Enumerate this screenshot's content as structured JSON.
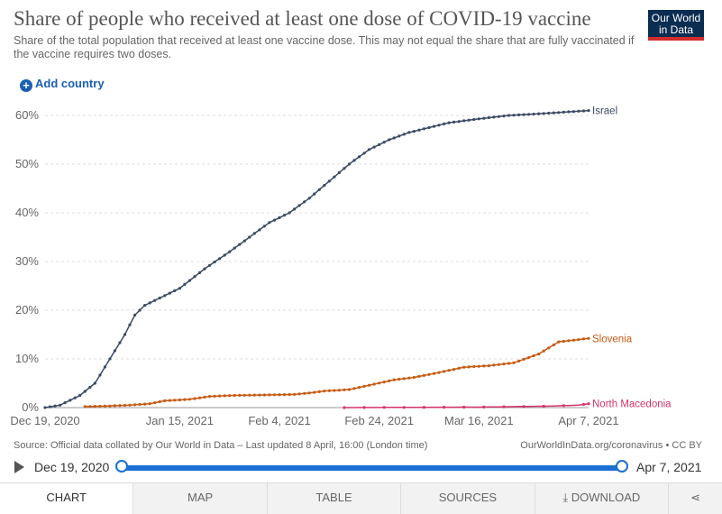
{
  "header": {
    "title": "Share of people who received at least one dose of COVID-19 vaccine",
    "subtitle": "Share of the total population that received at least one vaccine dose. This may not equal the share that are fully vaccinated if the vaccine requires two doses.",
    "logo_line1": "Our World",
    "logo_line2": "in Data"
  },
  "controls": {
    "add_country_label": "Add country"
  },
  "footer": {
    "source": "Source: Official data collated by Our World in Data – Last updated 8 April, 16:00 (London time)",
    "credit": "OurWorldInData.org/coronavirus • CC BY"
  },
  "timeline": {
    "start": "Dec 19, 2020",
    "end": "Apr 7, 2021"
  },
  "tabs": [
    "CHART",
    "MAP",
    "TABLE",
    "SOURCES",
    "DOWNLOAD",
    ""
  ],
  "colors": {
    "israel": "#3b4a63",
    "slovenia": "#c85a12",
    "north_macedonia": "#d6336c",
    "accent": "#1a6fd4"
  },
  "chart_data": {
    "type": "line",
    "x_start": "2020-12-19",
    "x_end": "2021-04-07",
    "x_tick_labels": [
      "Dec 19, 2020",
      "Jan 15, 2021",
      "Feb 4, 2021",
      "Feb 24, 2021",
      "Mar 16, 2021",
      "Apr 7, 2021"
    ],
    "x_tick_dates": [
      "2020-12-19",
      "2021-01-15",
      "2021-02-04",
      "2021-02-24",
      "2021-03-16",
      "2021-04-07"
    ],
    "y_ticks": [
      "0%",
      "10%",
      "20%",
      "30%",
      "40%",
      "50%",
      "60%"
    ],
    "ylim": [
      0,
      60
    ],
    "grid": true,
    "series": [
      {
        "name": "Israel",
        "color": "#3b4a63",
        "points": [
          [
            "2020-12-19",
            0
          ],
          [
            "2020-12-22",
            0.5
          ],
          [
            "2020-12-26",
            2.5
          ],
          [
            "2020-12-29",
            5
          ],
          [
            "2021-01-01",
            10
          ],
          [
            "2021-01-04",
            15
          ],
          [
            "2021-01-06",
            19
          ],
          [
            "2021-01-08",
            21
          ],
          [
            "2021-01-11",
            22.5
          ],
          [
            "2021-01-15",
            24.5
          ],
          [
            "2021-01-20",
            28.5
          ],
          [
            "2021-01-25",
            32
          ],
          [
            "2021-01-29",
            35
          ],
          [
            "2021-02-02",
            38
          ],
          [
            "2021-02-06",
            40
          ],
          [
            "2021-02-10",
            43
          ],
          [
            "2021-02-14",
            46.5
          ],
          [
            "2021-02-18",
            50
          ],
          [
            "2021-02-22",
            53
          ],
          [
            "2021-02-26",
            55
          ],
          [
            "2021-03-02",
            56.5
          ],
          [
            "2021-03-06",
            57.5
          ],
          [
            "2021-03-10",
            58.5
          ],
          [
            "2021-03-16",
            59.3
          ],
          [
            "2021-03-22",
            60
          ],
          [
            "2021-03-29",
            60.4
          ],
          [
            "2021-04-07",
            61
          ]
        ]
      },
      {
        "name": "Slovenia",
        "color": "#c85a12",
        "points": [
          [
            "2020-12-27",
            0.2
          ],
          [
            "2020-12-31",
            0.3
          ],
          [
            "2021-01-05",
            0.5
          ],
          [
            "2021-01-09",
            0.8
          ],
          [
            "2021-01-12",
            1.4
          ],
          [
            "2021-01-17",
            1.7
          ],
          [
            "2021-01-21",
            2.3
          ],
          [
            "2021-01-26",
            2.5
          ],
          [
            "2021-02-01",
            2.6
          ],
          [
            "2021-02-07",
            2.7
          ],
          [
            "2021-02-10",
            3.0
          ],
          [
            "2021-02-13",
            3.4
          ],
          [
            "2021-02-18",
            3.7
          ],
          [
            "2021-02-22",
            4.6
          ],
          [
            "2021-02-27",
            5.7
          ],
          [
            "2021-03-03",
            6.2
          ],
          [
            "2021-03-08",
            7.2
          ],
          [
            "2021-03-13",
            8.3
          ],
          [
            "2021-03-18",
            8.6
          ],
          [
            "2021-03-23",
            9.2
          ],
          [
            "2021-03-28",
            11
          ],
          [
            "2021-04-01",
            13.5
          ],
          [
            "2021-04-07",
            14.2
          ]
        ]
      },
      {
        "name": "North Macedonia",
        "color": "#d6336c",
        "points": [
          [
            "2021-02-17",
            0
          ],
          [
            "2021-03-16",
            0.1
          ],
          [
            "2021-03-30",
            0.3
          ],
          [
            "2021-04-02",
            0.4
          ],
          [
            "2021-04-05",
            0.5
          ],
          [
            "2021-04-07",
            0.8
          ]
        ]
      }
    ]
  }
}
